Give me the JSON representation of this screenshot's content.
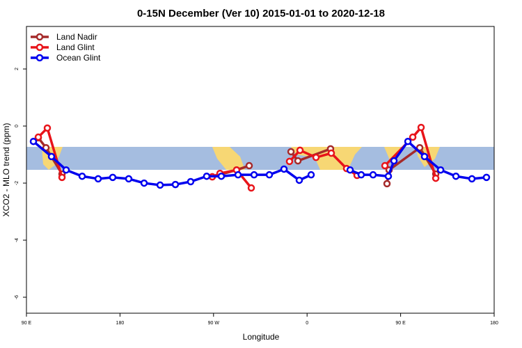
{
  "chart_data": {
    "type": "line",
    "title": "0-15N December (Ver 10)   2015-01-01 to 2020-12-18",
    "x_label": "Longitude",
    "y_label": "XCO2 - MLO trend (ppm)",
    "xlim": [
      90,
      540
    ],
    "ylim": [
      -6.56,
      3.49
    ],
    "xticks": [
      {
        "value": 90,
        "label": "90 E"
      },
      180,
      {
        "value": 270,
        "label": "90 W"
      },
      {
        "value": 360,
        "label": "0"
      },
      {
        "value": 450,
        "label": "90 E"
      },
      180
    ],
    "yticks": [
      2,
      0,
      -2,
      -4,
      -6
    ],
    "legend": "upper left",
    "series": [
      {
        "name": "Land Nadir",
        "color": "#a52a2a",
        "x": [
          101.4,
          108.8,
          124.2,
          null,
          268.8,
          292.2,
          304.3,
          null,
          344.5,
          351.2,
          382.6,
          null,
          436.9,
          438.9,
          468.4,
          483.8
        ],
        "values": [
          -0.41,
          -0.76,
          -1.68,
          null,
          -1.78,
          -1.54,
          -1.39,
          null,
          -0.9,
          -1.22,
          -0.8,
          null,
          -2.02,
          -1.54,
          -0.76,
          -1.68
        ]
      },
      {
        "name": "Land Glint",
        "color": "#e8141a",
        "x": [
          101.4,
          110.1,
          124.2,
          null,
          268.8,
          276.2,
          292.2,
          306.3,
          null,
          343.1,
          353.2,
          368.6,
          383.3,
          398,
          408.1,
          null,
          434.9,
          461.7,
          469.7,
          483.8
        ],
        "values": [
          -0.39,
          -0.07,
          -1.8,
          null,
          -1.78,
          -1.66,
          -1.54,
          -2.17,
          null,
          -1.24,
          -0.85,
          -1.1,
          -0.95,
          -1.49,
          -1.73,
          null,
          -1.39,
          -0.39,
          -0.05,
          -1.83
        ]
      },
      {
        "name": "Ocean Glint",
        "color": "#0000ee",
        "x": [
          96.7,
          114.1,
          128.2,
          143.6,
          159,
          173,
          188.4,
          203.2,
          218.6,
          233.3,
          248,
          263.4,
          277.5,
          293.6,
          309,
          323.7,
          337.8,
          352.5,
          363.9,
          null,
          401.4,
          412.1,
          423.5,
          438.2,
          443.6,
          457,
          473,
          488.5,
          503.2,
          518.6,
          532.6
        ],
        "values": [
          -0.54,
          -1.07,
          -1.54,
          -1.76,
          -1.85,
          -1.8,
          -1.85,
          -2.0,
          -2.07,
          -2.05,
          -1.95,
          -1.76,
          -1.76,
          -1.71,
          -1.71,
          -1.71,
          -1.51,
          -1.9,
          -1.71,
          null,
          -1.54,
          -1.71,
          -1.71,
          -1.76,
          -1.22,
          -0.54,
          -1.07,
          -1.54,
          -1.76,
          -1.85,
          -1.8
        ]
      }
    ]
  }
}
